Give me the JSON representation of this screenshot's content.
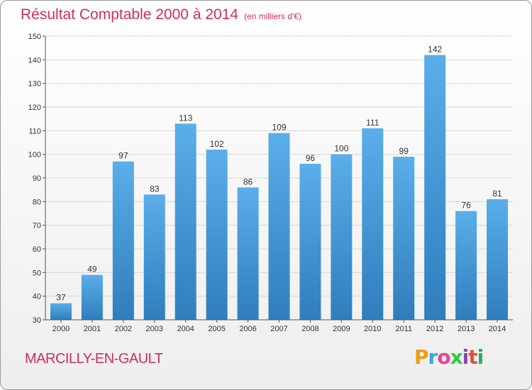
{
  "header": {
    "title": "Résultat Comptable 2000 à 2014",
    "subtitle": "(en milliers d'€)"
  },
  "footer": {
    "commune": "MARCILLY-EN-GAULT",
    "brand": "Proxiti"
  },
  "colors": {
    "title": "#cc2f5a",
    "bar_top": "#5aaeea",
    "bar_bottom": "#2f7dbd",
    "grid": "#d7d7d7",
    "brand_letters": [
      "#f39c12",
      "#3aa6dd",
      "#e84393",
      "#2ecc40",
      "#8e44ad",
      "#e74c3c",
      "#27ae60"
    ]
  },
  "chart_data": {
    "type": "bar",
    "title": "Résultat Comptable 2000 à 2014",
    "subtitle": "(en milliers d'€)",
    "xlabel": "",
    "ylabel": "",
    "categories": [
      "2000",
      "2001",
      "2002",
      "2003",
      "2004",
      "2005",
      "2006",
      "2007",
      "2008",
      "2009",
      "2010",
      "2011",
      "2012",
      "2013",
      "2014"
    ],
    "values": [
      37,
      49,
      97,
      83,
      113,
      102,
      86,
      109,
      96,
      100,
      111,
      99,
      142,
      76,
      81
    ],
    "ylim": [
      30,
      150
    ],
    "yticks": [
      30,
      40,
      50,
      60,
      70,
      80,
      90,
      100,
      110,
      120,
      130,
      140,
      150
    ],
    "grid": true,
    "legend": "none"
  }
}
